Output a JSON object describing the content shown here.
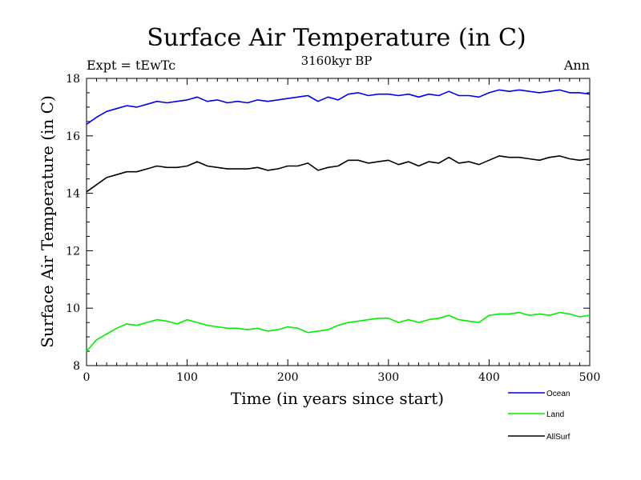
{
  "chart_data": {
    "type": "line",
    "title": "Surface Air Temperature (in C)",
    "subtitle": "3160kyr BP",
    "left_note": "Expt = tEwTc",
    "right_note": "Ann",
    "xlabel": "Time (in years since start)",
    "ylabel": "Surface Air Temperature (in C)",
    "xlim": [
      0,
      500
    ],
    "ylim": [
      8,
      18
    ],
    "xticks": [
      0,
      100,
      200,
      300,
      400,
      500
    ],
    "yticks": [
      8,
      10,
      12,
      14,
      16,
      18
    ],
    "grid": false,
    "legend_position": "bottom-right",
    "series": [
      {
        "name": "Ocean",
        "color": "#0000ee",
        "x": [
          0,
          10,
          20,
          30,
          40,
          50,
          60,
          70,
          80,
          90,
          100,
          110,
          120,
          130,
          140,
          150,
          160,
          170,
          180,
          190,
          200,
          210,
          220,
          230,
          240,
          250,
          260,
          270,
          280,
          290,
          300,
          310,
          320,
          330,
          340,
          350,
          360,
          370,
          380,
          390,
          400,
          410,
          420,
          430,
          440,
          450,
          460,
          470,
          480,
          490,
          500
        ],
        "values": [
          16.4,
          16.65,
          16.85,
          16.95,
          17.05,
          17.0,
          17.1,
          17.2,
          17.15,
          17.2,
          17.25,
          17.35,
          17.2,
          17.25,
          17.15,
          17.2,
          17.15,
          17.25,
          17.2,
          17.25,
          17.3,
          17.35,
          17.4,
          17.2,
          17.35,
          17.25,
          17.45,
          17.5,
          17.4,
          17.45,
          17.45,
          17.4,
          17.45,
          17.35,
          17.45,
          17.4,
          17.55,
          17.4,
          17.4,
          17.35,
          17.5,
          17.6,
          17.55,
          17.6,
          17.55,
          17.5,
          17.55,
          17.6,
          17.5,
          17.5,
          17.45
        ]
      },
      {
        "name": "Land",
        "color": "#00ee00",
        "x": [
          0,
          10,
          20,
          30,
          40,
          50,
          60,
          70,
          80,
          90,
          100,
          110,
          120,
          130,
          140,
          150,
          160,
          170,
          180,
          190,
          200,
          210,
          220,
          230,
          240,
          250,
          260,
          270,
          280,
          290,
          300,
          310,
          320,
          330,
          340,
          350,
          360,
          370,
          380,
          390,
          400,
          410,
          420,
          430,
          440,
          450,
          460,
          470,
          480,
          490,
          500
        ],
        "values": [
          8.5,
          8.9,
          9.1,
          9.3,
          9.45,
          9.4,
          9.5,
          9.6,
          9.55,
          9.45,
          9.6,
          9.5,
          9.4,
          9.35,
          9.3,
          9.3,
          9.25,
          9.3,
          9.2,
          9.25,
          9.35,
          9.3,
          9.15,
          9.2,
          9.25,
          9.4,
          9.5,
          9.55,
          9.6,
          9.65,
          9.65,
          9.5,
          9.6,
          9.5,
          9.6,
          9.65,
          9.75,
          9.6,
          9.55,
          9.5,
          9.75,
          9.8,
          9.8,
          9.85,
          9.75,
          9.8,
          9.75,
          9.85,
          9.8,
          9.7,
          9.75
        ]
      },
      {
        "name": "AllSurf",
        "color": "#000000",
        "x": [
          0,
          10,
          20,
          30,
          40,
          50,
          60,
          70,
          80,
          90,
          100,
          110,
          120,
          130,
          140,
          150,
          160,
          170,
          180,
          190,
          200,
          210,
          220,
          230,
          240,
          250,
          260,
          270,
          280,
          290,
          300,
          310,
          320,
          330,
          340,
          350,
          360,
          370,
          380,
          390,
          400,
          410,
          420,
          430,
          440,
          450,
          460,
          470,
          480,
          490,
          500
        ],
        "values": [
          14.05,
          14.3,
          14.55,
          14.65,
          14.75,
          14.75,
          14.85,
          14.95,
          14.9,
          14.9,
          14.95,
          15.1,
          14.95,
          14.9,
          14.85,
          14.85,
          14.85,
          14.9,
          14.8,
          14.85,
          14.95,
          14.95,
          15.05,
          14.8,
          14.9,
          14.95,
          15.15,
          15.15,
          15.05,
          15.1,
          15.15,
          15.0,
          15.1,
          14.95,
          15.1,
          15.05,
          15.25,
          15.05,
          15.1,
          15.0,
          15.15,
          15.3,
          15.25,
          15.25,
          15.2,
          15.15,
          15.25,
          15.3,
          15.2,
          15.15,
          15.2
        ]
      }
    ]
  }
}
